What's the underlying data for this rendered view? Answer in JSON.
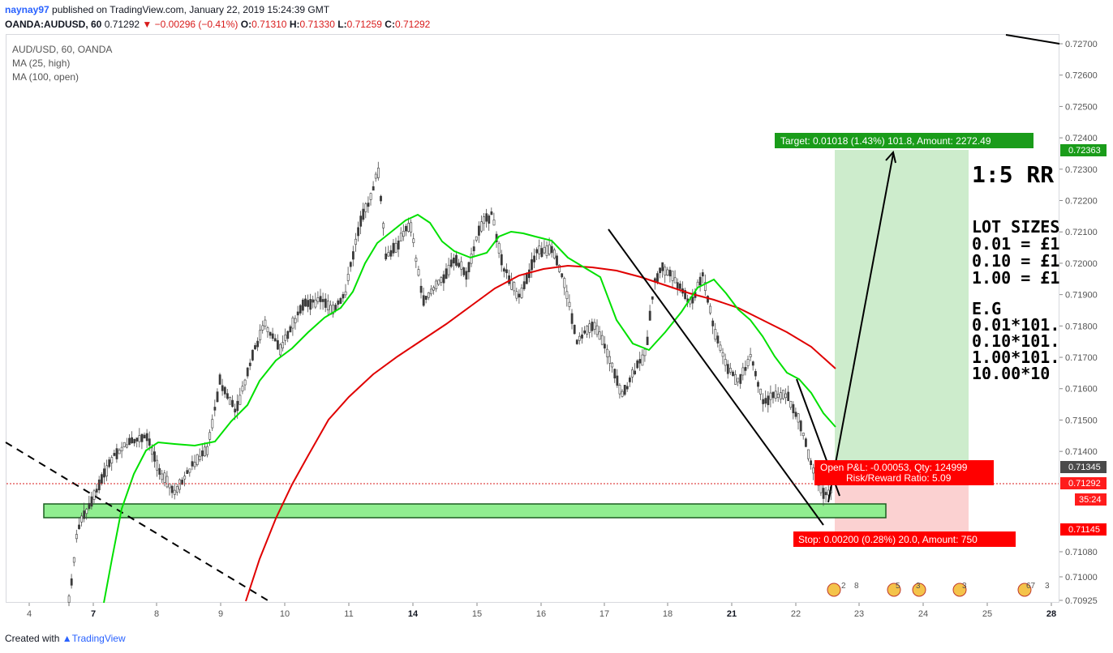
{
  "header": {
    "username": "naynay97",
    "published_text": "published on TradingView.com, January 22, 2019 15:24:39 GMT",
    "symbol": "OANDA:AUDUSD, 60",
    "price": "0.71292",
    "change_arrow": "▼",
    "change": "−0.00296 (−0.41%)",
    "o_label": "O:",
    "o_value": "0.71310",
    "h_label": "H:",
    "h_value": "0.71330",
    "l_label": "L:",
    "l_value": "0.71259",
    "c_label": "C:",
    "c_value": "0.71292"
  },
  "legend": {
    "title": "AUD/USD, 60, OANDA",
    "ma1": "MA (25, high)",
    "ma2": "MA (100, open)"
  },
  "annotations": {
    "target": "Target: 0.01018 (1.43%) 101.8, Amount: 2272.49",
    "pnl": "Open P&L: -0.00053, Qty: 124999",
    "rr": "Risk/Reward Ratio: 5.09",
    "stop": "Stop: 0.00200 (0.28%) 20.0, Amount: 750",
    "rr_title": "1:5 RR",
    "lots_title": "LOT SIZES",
    "lots": [
      "0.01 = £1",
      "0.10 = £1",
      "1.00 = £1"
    ],
    "eg_title": "E.G",
    "eg": [
      "0.01*101.",
      "0.10*101.",
      "1.00*101.",
      "10.00*10"
    ]
  },
  "price_axis": {
    "ticks": [
      "0.72700",
      "0.72600",
      "0.72500",
      "0.72400",
      "0.72300",
      "0.72200",
      "0.72100",
      "0.72000",
      "0.71900",
      "0.71800",
      "0.71700",
      "0.71600",
      "0.71500",
      "0.71400",
      "0.71080",
      "0.71000",
      "0.70925"
    ],
    "tags": {
      "target": "0.72363",
      "high": "0.71345",
      "current": "0.71292",
      "countdown": "35:24",
      "stop": "0.71145"
    }
  },
  "time_axis": {
    "labels": [
      "4",
      "7",
      "8",
      "9",
      "10",
      "11",
      "14",
      "15",
      "16",
      "17",
      "18",
      "21",
      "22",
      "23",
      "24",
      "25",
      "28"
    ],
    "bold": [
      "7",
      "14",
      "21",
      "28"
    ]
  },
  "events": [
    "2",
    "8",
    "5",
    "3",
    "3",
    "67",
    "3"
  ],
  "footer": {
    "created": "Created with",
    "brand": "TradingView"
  },
  "colors": {
    "bull": "#4a4a4a",
    "ma25": "#00e000",
    "ma100": "#e00000",
    "target_zone": "#cdeccc",
    "stop_zone": "#fbd1d1",
    "support_zone": "#90ee90",
    "target_tag": "#1a9c1a",
    "stop_tag": "#ff0000"
  },
  "chart_data": {
    "type": "candlestick",
    "ylim": [
      0.70925,
      0.727
    ],
    "series": [
      {
        "name": "AUD/USD, 60, OANDA"
      },
      {
        "name": "MA (25, high)"
      },
      {
        "name": "MA (100, open)"
      }
    ]
  }
}
